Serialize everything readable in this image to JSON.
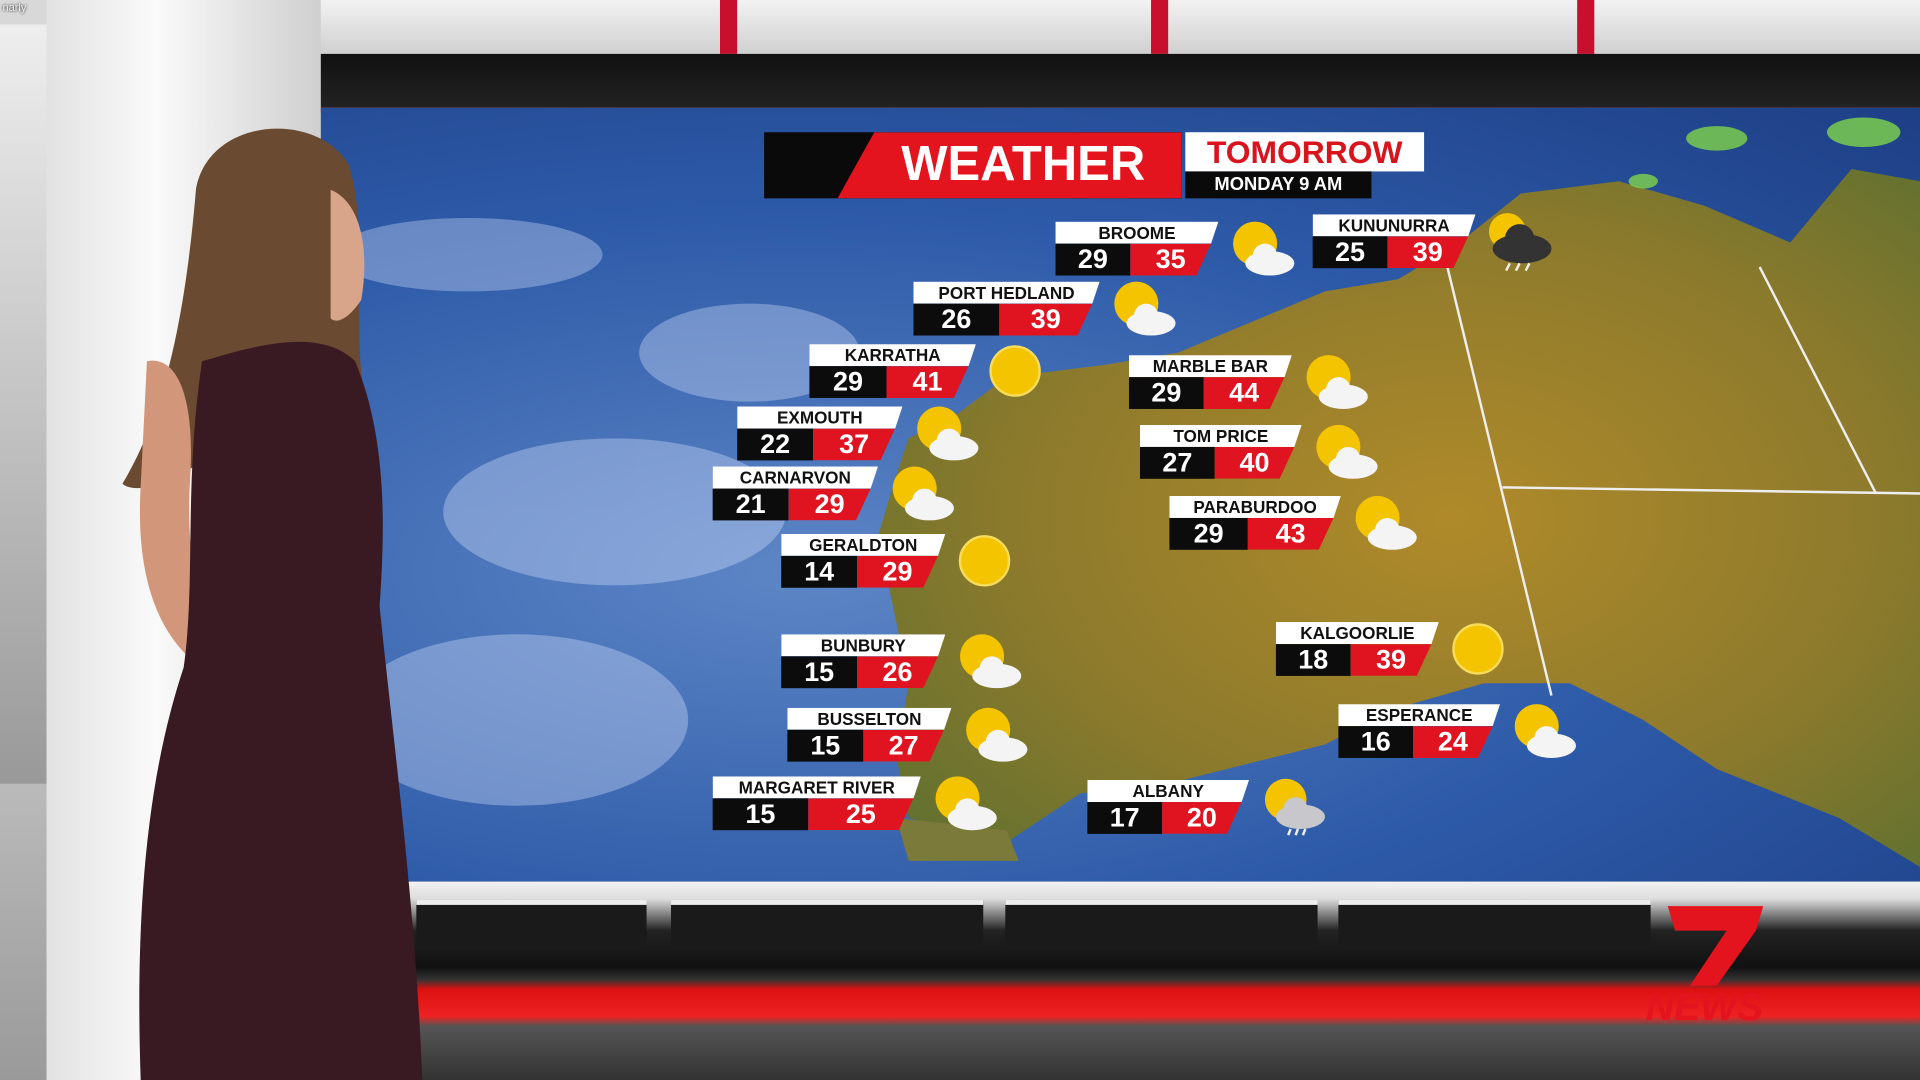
{
  "corner_text": "narly",
  "header": {
    "title": "WEATHER",
    "subtitle": "TOMORROW",
    "date": "MONDAY 9 AM"
  },
  "colors": {
    "accent_red": "#e01420",
    "black": "#0c0c0c",
    "ocean": "#2d5aa8",
    "land": "#8a7a2e"
  },
  "cities": [
    {
      "name": "BROOME",
      "min": "29",
      "max": "35",
      "icon": "sun-cloud-icon"
    },
    {
      "name": "KUNUNURRA",
      "min": "25",
      "max": "39",
      "icon": "storm-cloud-icon"
    },
    {
      "name": "PORT HEDLAND",
      "min": "26",
      "max": "39",
      "icon": "sun-cloud-icon"
    },
    {
      "name": "KARRATHA",
      "min": "29",
      "max": "41",
      "icon": "sun-icon"
    },
    {
      "name": "MARBLE BAR",
      "min": "29",
      "max": "44",
      "icon": "sun-cloud-icon"
    },
    {
      "name": "EXMOUTH",
      "min": "22",
      "max": "37",
      "icon": "sun-cloud-icon"
    },
    {
      "name": "TOM PRICE",
      "min": "27",
      "max": "40",
      "icon": "sun-cloud-icon"
    },
    {
      "name": "CARNARVON",
      "min": "21",
      "max": "29",
      "icon": "sun-cloud-icon"
    },
    {
      "name": "PARABURDOO",
      "min": "29",
      "max": "43",
      "icon": "sun-cloud-icon"
    },
    {
      "name": "GERALDTON",
      "min": "14",
      "max": "29",
      "icon": "sun-icon"
    },
    {
      "name": "KALGOORLIE",
      "min": "18",
      "max": "39",
      "icon": "sun-icon"
    },
    {
      "name": "BUNBURY",
      "min": "15",
      "max": "26",
      "icon": "sun-cloud-icon"
    },
    {
      "name": "BUSSELTON",
      "min": "15",
      "max": "27",
      "icon": "sun-cloud-icon"
    },
    {
      "name": "ESPERANCE",
      "min": "16",
      "max": "24",
      "icon": "sun-cloud-icon"
    },
    {
      "name": "MARGARET RIVER",
      "min": "15",
      "max": "25",
      "icon": "sun-cloud-icon"
    },
    {
      "name": "ALBANY",
      "min": "17",
      "max": "20",
      "icon": "sun-rain-icon"
    }
  ],
  "logo": {
    "text": "7NEWS"
  }
}
